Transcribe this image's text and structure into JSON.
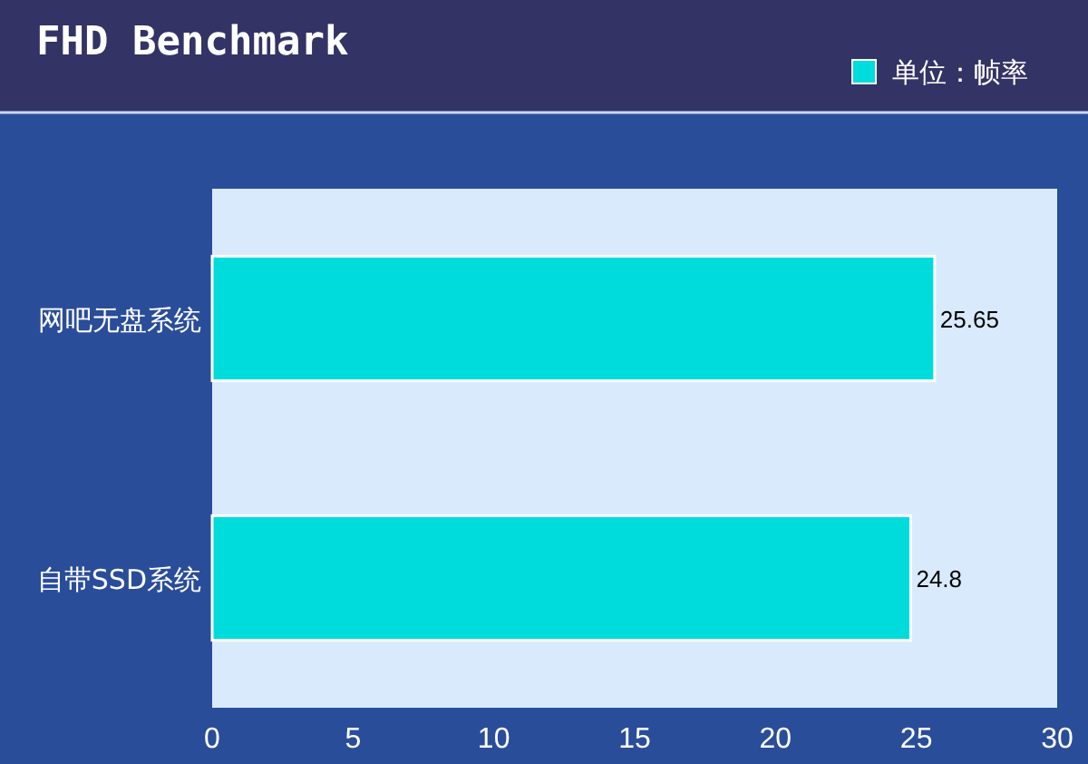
{
  "chart_data": {
    "type": "bar",
    "orientation": "horizontal",
    "title": "FHD Benchmark",
    "categories": [
      "网吧无盘系统",
      "自带SSD系统"
    ],
    "series": [
      {
        "name": "单位：帧率",
        "color": "#00dcdc",
        "values": [
          25.65,
          24.8
        ]
      }
    ],
    "xlim": [
      0,
      30
    ],
    "xticks": [
      0,
      5,
      10,
      15,
      20,
      25,
      30
    ],
    "grid": false,
    "legend": "top right",
    "data_labels": true
  }
}
